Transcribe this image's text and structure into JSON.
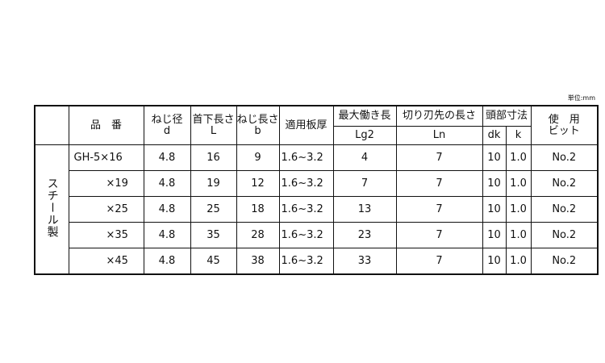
{
  "unit": "単位:mm",
  "headers": {
    "part_no": "品　番",
    "d_label": "ねじ径",
    "d": "d",
    "L_label": "首下長さ",
    "L": "L",
    "b_label": "ねじ長さ",
    "b": "b",
    "plate": "適用板厚",
    "lg2_label": "最大働き長",
    "lg2": "Lg2",
    "ln_label": "切り刃先の長さ",
    "ln": "Ln",
    "head_label": "頭部寸法",
    "dk": "dk",
    "k": "k",
    "bit1": "使　用",
    "bit2": "ビット"
  },
  "material": "スチール製",
  "rows": [
    {
      "part": "GH-5×16",
      "d": "4.8",
      "L": "16",
      "b": "9",
      "plate": "1.6~3.2",
      "lg2": "4",
      "ln": "7",
      "dk": "10",
      "k": "1.0",
      "bit": "No.2"
    },
    {
      "part": "×19",
      "d": "4.8",
      "L": "19",
      "b": "12",
      "plate": "1.6~3.2",
      "lg2": "7",
      "ln": "7",
      "dk": "10",
      "k": "1.0",
      "bit": "No.2"
    },
    {
      "part": "×25",
      "d": "4.8",
      "L": "25",
      "b": "18",
      "plate": "1.6~3.2",
      "lg2": "13",
      "ln": "7",
      "dk": "10",
      "k": "1.0",
      "bit": "No.2"
    },
    {
      "part": "×35",
      "d": "4.8",
      "L": "35",
      "b": "28",
      "plate": "1.6~3.2",
      "lg2": "23",
      "ln": "7",
      "dk": "10",
      "k": "1.0",
      "bit": "No.2"
    },
    {
      "part": "×45",
      "d": "4.8",
      "L": "45",
      "b": "38",
      "plate": "1.6~3.2",
      "lg2": "33",
      "ln": "7",
      "dk": "10",
      "k": "1.0",
      "bit": "No.2"
    }
  ]
}
